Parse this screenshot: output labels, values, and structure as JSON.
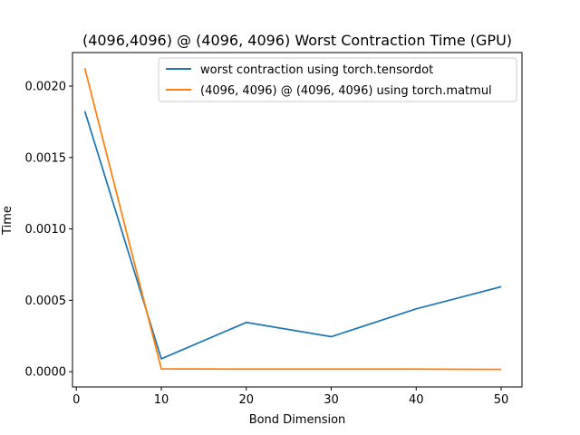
{
  "chart_data": {
    "type": "line",
    "title": "(4096,4096) @ (4096, 4096) Worst Contraction Time (GPU)",
    "xlabel": "Bond Dimension",
    "ylabel": "Time",
    "x": [
      1,
      10,
      20,
      30,
      40,
      50
    ],
    "xlim": [
      -0.45,
      52.45
    ],
    "ylim": [
      -0.000107,
      0.002235
    ],
    "xticks": [
      0,
      10,
      20,
      30,
      40,
      50
    ],
    "xtick_labels": [
      "0",
      "10",
      "20",
      "30",
      "40",
      "50"
    ],
    "yticks": [
      0,
      0.0005,
      0.001,
      0.0015,
      0.002
    ],
    "ytick_labels": [
      "0.0000",
      "0.0005",
      "0.0010",
      "0.0015",
      "0.0020"
    ],
    "grid": false,
    "legend_position": "top-right",
    "series": [
      {
        "name": "worst contraction using torch.tensordot",
        "color": "#1f77b4",
        "values": [
          0.001825,
          9e-05,
          0.000345,
          0.000245,
          0.00044,
          0.000595
        ]
      },
      {
        "name": "(4096, 4096) @ (4096, 4096) using torch.matmul",
        "color": "#ff7f0e",
        "values": [
          0.002125,
          2e-05,
          1.8e-05,
          1.8e-05,
          1.8e-05,
          1.6e-05
        ]
      }
    ]
  }
}
